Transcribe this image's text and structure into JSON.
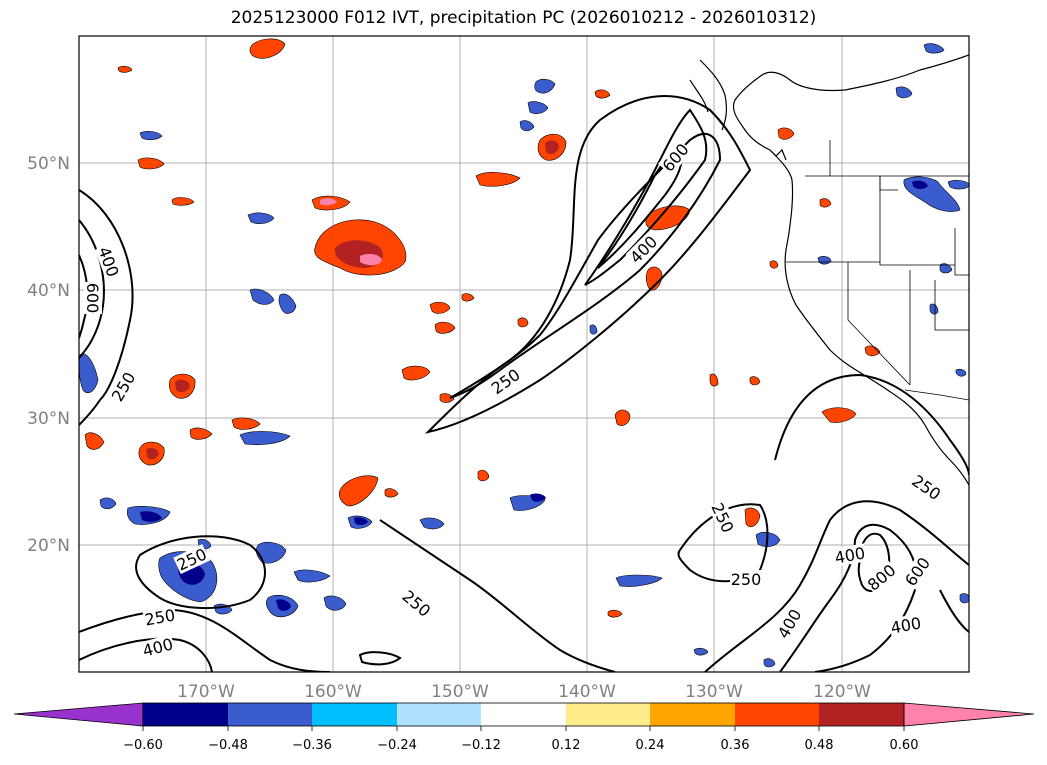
{
  "title": "2025123000 F012 IVT, precipitation PC (2026010212 - 2026010312)",
  "lat_labels": [
    "50°N",
    "40°N",
    "30°N",
    "20°N"
  ],
  "lon_labels": [
    "170°W",
    "160°W",
    "150°W",
    "140°W",
    "130°W",
    "120°W"
  ],
  "colorbar": {
    "ticks": [
      "−0.60",
      "−0.48",
      "−0.36",
      "−0.24",
      "−0.12",
      "0.12",
      "0.24",
      "0.36",
      "0.48",
      "0.60"
    ],
    "colors": [
      "#9932cc",
      "#00008b",
      "#3a5ccc",
      "#00bfff",
      "#b0e2ff",
      "#ffffff",
      "#ffec8b",
      "#ffa500",
      "#ff4500",
      "#b22222",
      "#ff82ab"
    ]
  },
  "contour_labels": [
    {
      "id": "c1",
      "text": "400"
    },
    {
      "id": "c2",
      "text": "600"
    },
    {
      "id": "c3",
      "text": "250"
    },
    {
      "id": "c4",
      "text": "600"
    },
    {
      "id": "c5",
      "text": "400"
    },
    {
      "id": "c6",
      "text": "250"
    },
    {
      "id": "c7",
      "text": "250"
    },
    {
      "id": "c8",
      "text": "250"
    },
    {
      "id": "c9",
      "text": "400"
    },
    {
      "id": "c10",
      "text": "250"
    },
    {
      "id": "c11",
      "text": "250"
    },
    {
      "id": "c12",
      "text": "250"
    },
    {
      "id": "c13",
      "text": "250"
    },
    {
      "id": "c14",
      "text": "400"
    },
    {
      "id": "c15",
      "text": "800"
    },
    {
      "id": "c16",
      "text": "600"
    },
    {
      "id": "c17",
      "text": "400"
    },
    {
      "id": "c18",
      "text": "400"
    }
  ]
}
